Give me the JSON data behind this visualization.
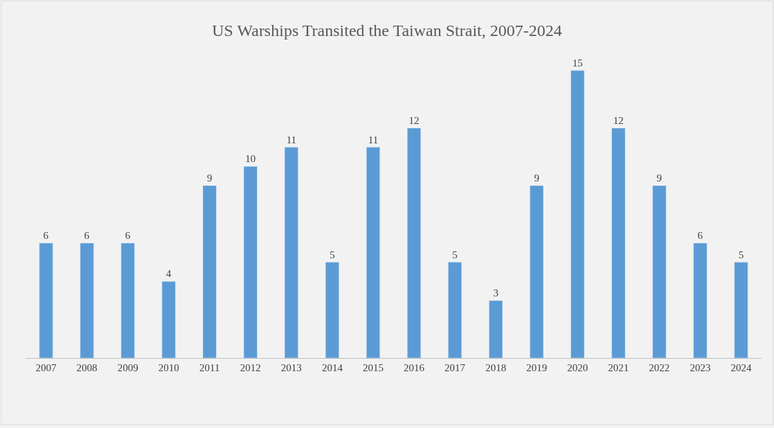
{
  "chart_data": {
    "type": "bar",
    "title": "US Warships Transited the Taiwan Strait, 2007-2024",
    "categories": [
      "2007",
      "2008",
      "2009",
      "2010",
      "2011",
      "2012",
      "2013",
      "2014",
      "2015",
      "2016",
      "2017",
      "2018",
      "2019",
      "2020",
      "2021",
      "2022",
      "2023",
      "2024"
    ],
    "values": [
      6,
      6,
      6,
      4,
      9,
      10,
      11,
      5,
      11,
      12,
      5,
      3,
      9,
      15,
      12,
      9,
      6,
      5
    ],
    "color": "#5b9bd5",
    "data_labels": true,
    "grid": false,
    "legend": false
  }
}
